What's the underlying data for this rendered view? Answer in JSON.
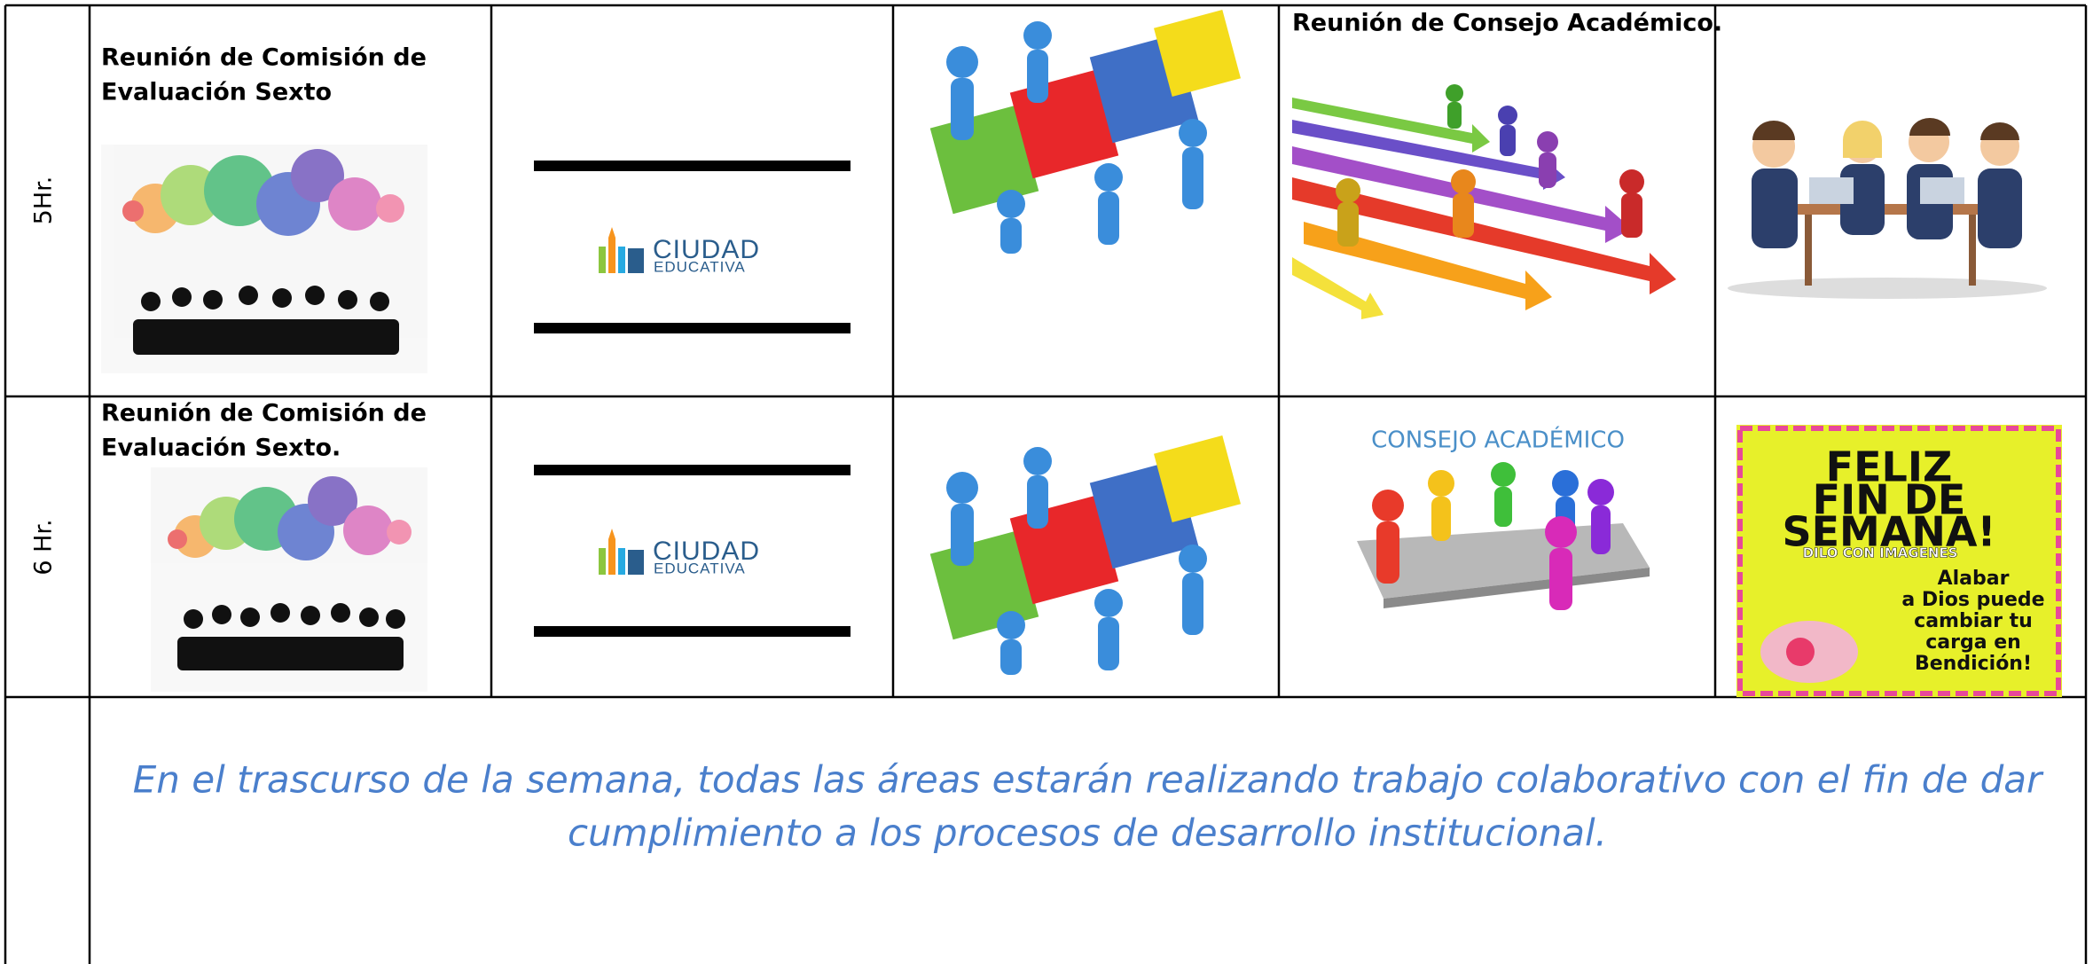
{
  "schedule": {
    "rows": [
      {
        "period": "5Hr.",
        "title": [
          "Reunión de Comisión de",
          "Evaluación Sexto"
        ],
        "logo": [
          "CIUDAD",
          "EDUCATIVA"
        ],
        "meeting_title": "Reunión de Consejo Académico."
      },
      {
        "period": "6 Hr.",
        "title": [
          "Reunión de Comisión de",
          "Evaluación Sexto."
        ],
        "logo": [
          "CIUDAD",
          "EDUCATIVA"
        ],
        "poster_title": "CONSEJO ACADÉMICO",
        "greeting": [
          "FELIZ",
          "FIN DE",
          "SEMANA!"
        ],
        "greeting_sub": "DILO CON IMAGENES",
        "greeting_message": [
          "Alabar",
          "a Dios puede",
          "cambiar tu",
          "carga en",
          "Bendición!"
        ]
      }
    ]
  },
  "note": [
    "En el trascurso de la semana, todas las áreas estarán realizando trabajo colaborativo con el fin de dar",
    "cumplimiento a los procesos de desarrollo institucional."
  ]
}
